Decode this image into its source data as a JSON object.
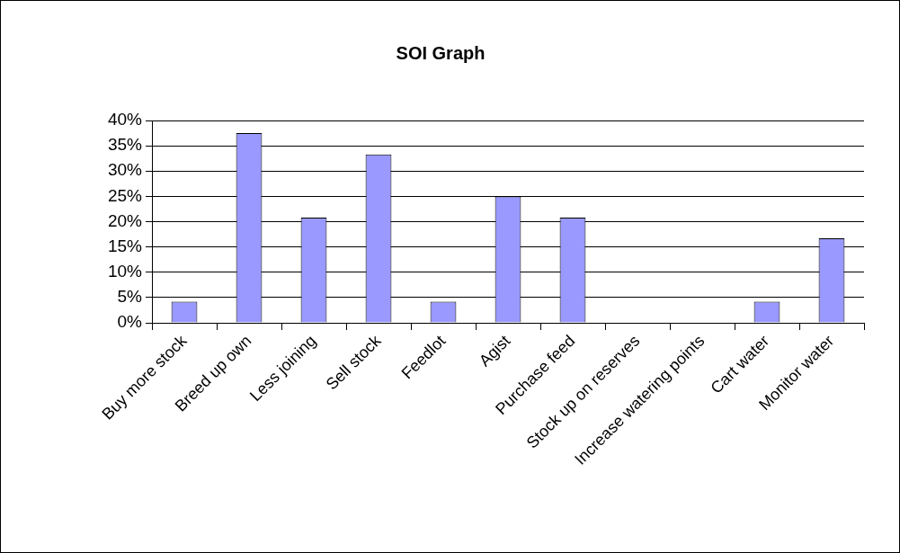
{
  "chart_data": {
    "type": "bar",
    "title": "SOI Graph",
    "categories": [
      "Buy more stock",
      "Breed up own",
      "Less joining",
      "Sell stock",
      "Feedlot",
      "Agist",
      "Purchase feed",
      "Stock up on reserves",
      "Increase watering points",
      "Cart water",
      "Monitor water"
    ],
    "values": [
      4.2,
      37.5,
      20.8,
      33.3,
      4.2,
      25,
      20.8,
      0,
      0,
      4.2,
      16.7
    ],
    "color": "#9999ff",
    "ylim": [
      0,
      40
    ],
    "yticks": [
      {
        "value": 0,
        "label": "0%"
      },
      {
        "value": 5,
        "label": "5%"
      },
      {
        "value": 10,
        "label": "10%"
      },
      {
        "value": 15,
        "label": "15%"
      },
      {
        "value": 20,
        "label": "20%"
      },
      {
        "value": 25,
        "label": "25%"
      },
      {
        "value": 30,
        "label": "30%"
      },
      {
        "value": 35,
        "label": "35%"
      },
      {
        "value": 40,
        "label": "40%"
      }
    ],
    "grid": "y"
  }
}
